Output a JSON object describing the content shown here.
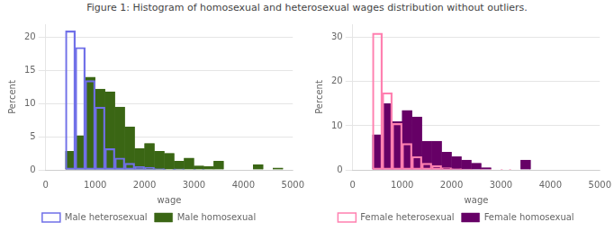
{
  "chart_data": [
    {
      "type": "histogram",
      "title": "Figure 1: Histogram of homosexual and heterosexual wages distribution without outliers.",
      "bins": [
        0,
        200,
        400,
        600,
        800,
        1000,
        1200,
        1400,
        1600,
        1800,
        2000,
        2200,
        2400,
        2600,
        2800,
        3000,
        3200,
        3400,
        3600,
        3800,
        4000,
        4200,
        4400,
        4600,
        4800,
        5000
      ],
      "series": [
        {
          "name": "Male homosexual",
          "color": "#3a6614",
          "values": [
            0,
            0,
            2.8,
            5.2,
            14.0,
            12.2,
            11.8,
            9.5,
            6.5,
            3.2,
            4.0,
            2.8,
            2.5,
            1.3,
            1.8,
            0.6,
            0.5,
            1.3,
            0,
            0,
            0,
            0.8,
            0,
            0.3,
            0
          ]
        },
        {
          "name": "Male heterosexual",
          "color": "#7070e8",
          "values": [
            0,
            0,
            21.0,
            18.5,
            13.5,
            9.5,
            3.2,
            1.8,
            1.0,
            0.5,
            0.4,
            0.2,
            0.1,
            0.15,
            0,
            0.1,
            0,
            0,
            0,
            0,
            0,
            0,
            0,
            0,
            0
          ]
        }
      ],
      "xlabel": "wage",
      "ylabel": "Percent",
      "xlim": [
        0,
        5000
      ],
      "xticks": [
        0,
        1000,
        2000,
        3000,
        4000,
        5000
      ],
      "ylim": [
        0,
        22
      ],
      "yticks": [
        0,
        5,
        10,
        15,
        20
      ],
      "grid": "y",
      "legend": "bottom"
    },
    {
      "type": "histogram",
      "bins": [
        0,
        200,
        400,
        600,
        800,
        1000,
        1200,
        1400,
        1600,
        1800,
        2000,
        2200,
        2400,
        2600,
        2800,
        3000,
        3200,
        3400,
        3600,
        3800,
        4000,
        4200,
        4400,
        4600,
        4800,
        5000
      ],
      "series": [
        {
          "name": "Female homosexual",
          "color": "#660066",
          "values": [
            0,
            0,
            8.0,
            15.0,
            11.0,
            13.5,
            12.0,
            6.5,
            6.5,
            4.0,
            3.0,
            2.2,
            1.5,
            0.5,
            0,
            0,
            0,
            2.2,
            0,
            0,
            0,
            0,
            0,
            0,
            0
          ]
        },
        {
          "name": "Female heterosexual",
          "color": "#ff80b0",
          "values": [
            0,
            0,
            31.0,
            17.5,
            10.5,
            6.0,
            3.0,
            1.5,
            1.0,
            0.5,
            0.3,
            0.2,
            0.1,
            0.05,
            0,
            0.05,
            0,
            0,
            0,
            0,
            0,
            0,
            0,
            0,
            0
          ]
        }
      ],
      "xlabel": "wage",
      "ylabel": "Percent",
      "xlim": [
        0,
        5000
      ],
      "xticks": [
        0,
        1000,
        2000,
        3000,
        4000,
        5000
      ],
      "ylim": [
        0,
        33
      ],
      "yticks": [
        0,
        10,
        20,
        30
      ],
      "grid": "y",
      "legend": "bottom"
    }
  ]
}
